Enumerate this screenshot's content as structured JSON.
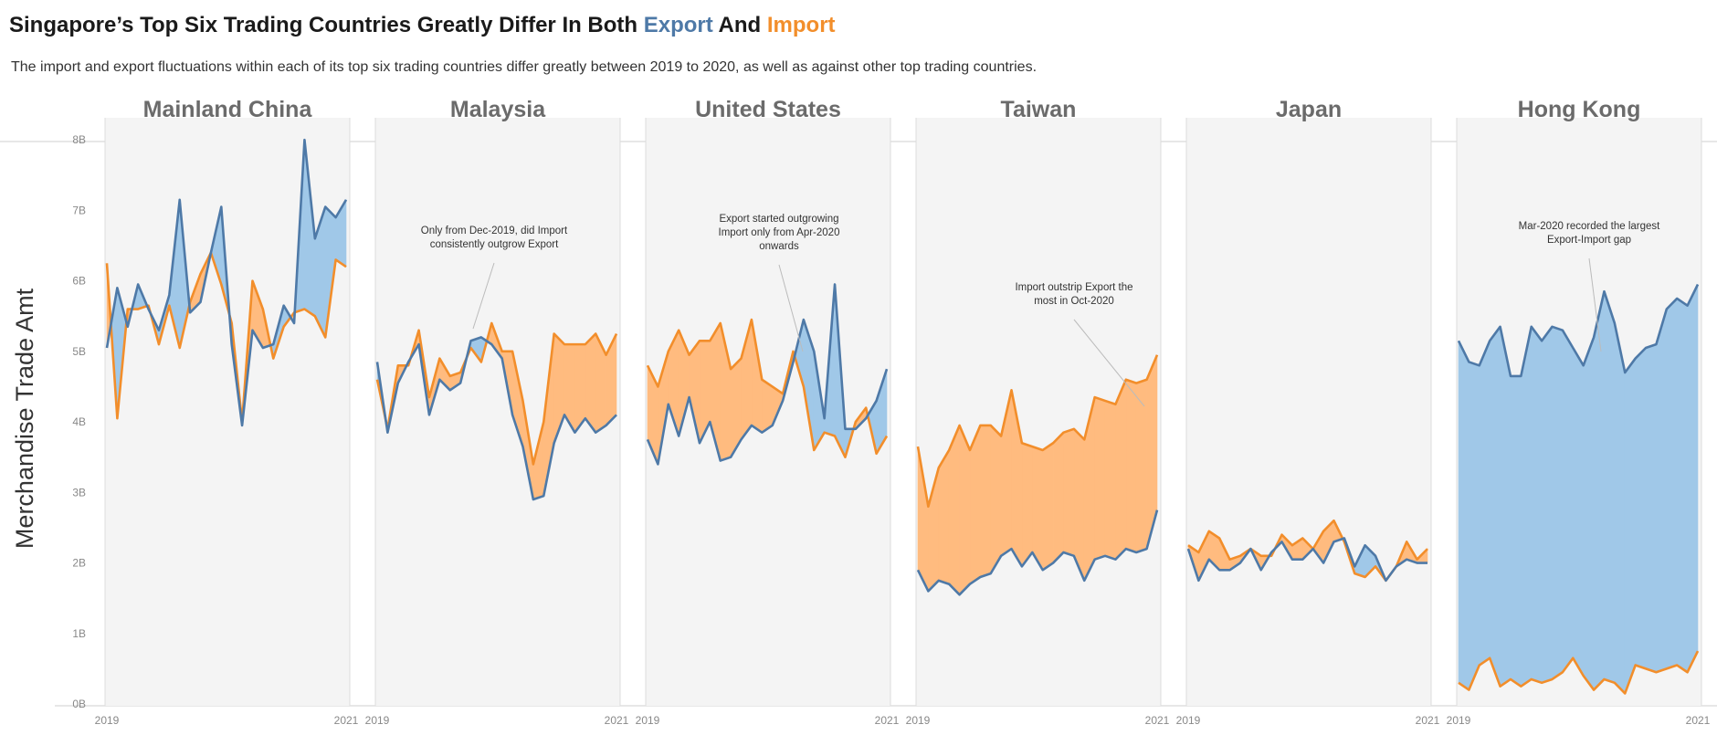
{
  "title": {
    "prefix": "Singapore’s Top Six Trading Countries Greatly Differ In Both ",
    "export_word": "Export",
    "middle": " And ",
    "import_word": "Import"
  },
  "subtitle": "The import and export fluctuations within each of its top six trading countries differ greatly between 2019 to 2020, as well as against other top trading countries.",
  "colors": {
    "export_line": "#4e79a7",
    "import_line": "#f28e2b",
    "export_fill": "#a0c8e8",
    "import_fill": "#ffbb7f",
    "panel_bg": "#f4f4f4"
  },
  "chart_data": {
    "type": "line",
    "ylabel": "Merchandise Trade Amt",
    "ylim": [
      0,
      8.3
    ],
    "y_ticks": [
      "0B",
      "1B",
      "2B",
      "3B",
      "4B",
      "5B",
      "6B",
      "7B",
      "8B"
    ],
    "x_ticks": [
      "2019",
      "2021"
    ],
    "series_names": [
      "Export",
      "Import"
    ],
    "panels": [
      {
        "country": "Mainland China",
        "export": [
          5.05,
          5.9,
          5.35,
          5.95,
          5.6,
          5.3,
          5.8,
          7.15,
          5.55,
          5.7,
          6.4,
          7.05,
          5.1,
          3.95,
          5.3,
          5.05,
          5.1,
          5.65,
          5.4,
          8.0,
          6.6,
          7.05,
          6.9,
          7.15
        ],
        "import": [
          6.25,
          4.05,
          5.6,
          5.6,
          5.65,
          5.1,
          5.65,
          5.05,
          5.7,
          6.1,
          6.4,
          5.95,
          5.4,
          4.0,
          6.0,
          5.6,
          4.9,
          5.35,
          5.55,
          5.6,
          5.5,
          5.2,
          6.3,
          6.2
        ],
        "annotation": []
      },
      {
        "country": "Malaysia",
        "export": [
          4.85,
          3.85,
          4.55,
          4.85,
          5.1,
          4.1,
          4.6,
          4.45,
          4.55,
          5.15,
          5.2,
          5.1,
          4.9,
          4.1,
          3.65,
          2.9,
          2.95,
          3.7,
          4.1,
          3.85,
          4.05,
          3.85,
          3.95,
          4.1
        ],
        "import": [
          4.6,
          3.9,
          4.8,
          4.8,
          5.3,
          4.35,
          4.9,
          4.65,
          4.7,
          5.05,
          4.85,
          5.4,
          5.0,
          5.0,
          4.3,
          3.4,
          4.0,
          5.25,
          5.1,
          5.1,
          5.1,
          5.25,
          4.95,
          5.25
        ],
        "annotation": [
          "Only from Dec-2019, did Import",
          "consistently outgrow Export"
        ]
      },
      {
        "country": "United States",
        "export": [
          3.75,
          3.4,
          4.25,
          3.8,
          4.35,
          3.7,
          4.0,
          3.45,
          3.5,
          3.75,
          3.95,
          3.85,
          3.95,
          4.3,
          4.85,
          5.45,
          5.0,
          4.05,
          5.95,
          3.9,
          3.9,
          4.05,
          4.3,
          4.75
        ],
        "import": [
          4.8,
          4.5,
          5.0,
          5.3,
          4.95,
          5.15,
          5.15,
          5.4,
          4.75,
          4.9,
          5.45,
          4.6,
          4.5,
          4.4,
          5.0,
          4.5,
          3.6,
          3.85,
          3.8,
          3.5,
          4.0,
          4.2,
          3.55,
          3.8
        ],
        "annotation": [
          "Export started outgrowing",
          "Import only from Apr-2020",
          "onwards"
        ]
      },
      {
        "country": "Taiwan",
        "export": [
          1.9,
          1.6,
          1.75,
          1.7,
          1.55,
          1.7,
          1.8,
          1.85,
          2.1,
          2.2,
          1.95,
          2.15,
          1.9,
          2.0,
          2.15,
          2.1,
          1.75,
          2.05,
          2.1,
          2.05,
          2.2,
          2.15,
          2.2,
          2.75
        ],
        "import": [
          3.65,
          2.8,
          3.35,
          3.6,
          3.95,
          3.6,
          3.95,
          3.95,
          3.8,
          4.45,
          3.7,
          3.65,
          3.6,
          3.7,
          3.85,
          3.9,
          3.75,
          4.35,
          4.3,
          4.25,
          4.6,
          4.55,
          4.6,
          4.95
        ],
        "annotation": [
          "Import outstrip Export the",
          "most in Oct-2020"
        ]
      },
      {
        "country": "Japan",
        "export": [
          2.2,
          1.75,
          2.05,
          1.9,
          1.9,
          2.0,
          2.2,
          1.9,
          2.15,
          2.3,
          2.05,
          2.05,
          2.2,
          2.0,
          2.3,
          2.35,
          1.95,
          2.25,
          2.1,
          1.75,
          1.95,
          2.05,
          2.0,
          2.0
        ],
        "import": [
          2.25,
          2.15,
          2.45,
          2.35,
          2.05,
          2.1,
          2.2,
          2.1,
          2.1,
          2.4,
          2.25,
          2.35,
          2.2,
          2.45,
          2.6,
          2.3,
          1.85,
          1.8,
          1.95,
          1.75,
          1.95,
          2.3,
          2.05,
          2.2
        ],
        "annotation": []
      },
      {
        "country": "Hong Kong",
        "export": [
          5.15,
          4.85,
          4.8,
          5.15,
          5.35,
          4.65,
          4.65,
          5.35,
          5.15,
          5.35,
          5.3,
          5.05,
          4.8,
          5.2,
          5.85,
          5.4,
          4.7,
          4.9,
          5.05,
          5.1,
          5.6,
          5.75,
          5.65,
          5.95
        ],
        "import": [
          0.3,
          0.2,
          0.55,
          0.65,
          0.25,
          0.35,
          0.25,
          0.35,
          0.3,
          0.35,
          0.45,
          0.65,
          0.4,
          0.2,
          0.35,
          0.3,
          0.15,
          0.55,
          0.5,
          0.45,
          0.5,
          0.55,
          0.45,
          0.75
        ],
        "annotation": [
          "Mar-2020 recorded the largest",
          "Export-Import gap"
        ]
      }
    ]
  }
}
